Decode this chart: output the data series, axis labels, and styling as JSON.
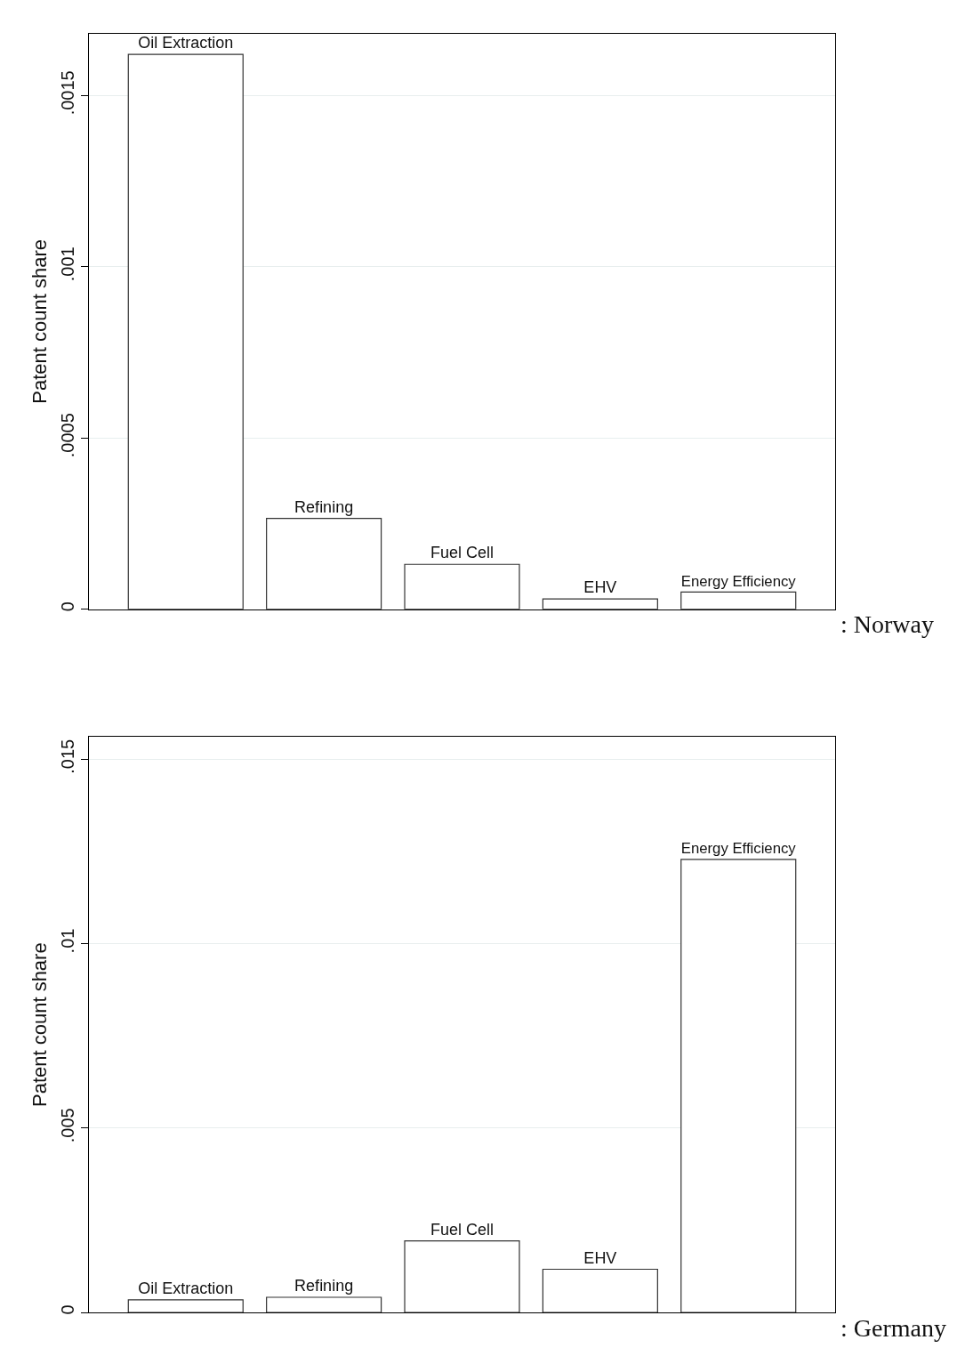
{
  "chart_data": [
    {
      "type": "bar",
      "ylabel": "Patent count share",
      "categories": [
        "Oil Extraction",
        "Refining",
        "Fuel Cell",
        "EHV",
        "Energy Efficiency"
      ],
      "values": [
        0.00162,
        0.000265,
        0.000131,
        3e-05,
        5e-05
      ],
      "color": "#ffffff",
      "ylim": [
        0,
        0.00168
      ],
      "yticks": [
        {
          "value": 0,
          "label": "0"
        },
        {
          "value": 0.0005,
          "label": ".0005"
        },
        {
          "value": 0.001,
          "label": ".001"
        },
        {
          "value": 0.0015,
          "label": ".0015"
        }
      ],
      "grid": "y",
      "tick_labels": "y",
      "annotations": [
        ": Norway"
      ]
    },
    {
      "type": "bar",
      "ylabel": "Patent count share",
      "categories": [
        "Oil Extraction",
        "Refining",
        "Fuel Cell",
        "EHV",
        "Energy Efficiency"
      ],
      "values": [
        0.00034,
        0.00041,
        0.00194,
        0.00117,
        0.01228
      ],
      "color": "#ffffff",
      "ylim": [
        0,
        0.0156
      ],
      "yticks": [
        {
          "value": 0,
          "label": "0"
        },
        {
          "value": 0.005,
          "label": ".005"
        },
        {
          "value": 0.01,
          "label": ".01"
        },
        {
          "value": 0.015,
          "label": ".015"
        }
      ],
      "grid": "y",
      "tick_labels": "y",
      "annotations": [
        ": Germany"
      ]
    }
  ]
}
